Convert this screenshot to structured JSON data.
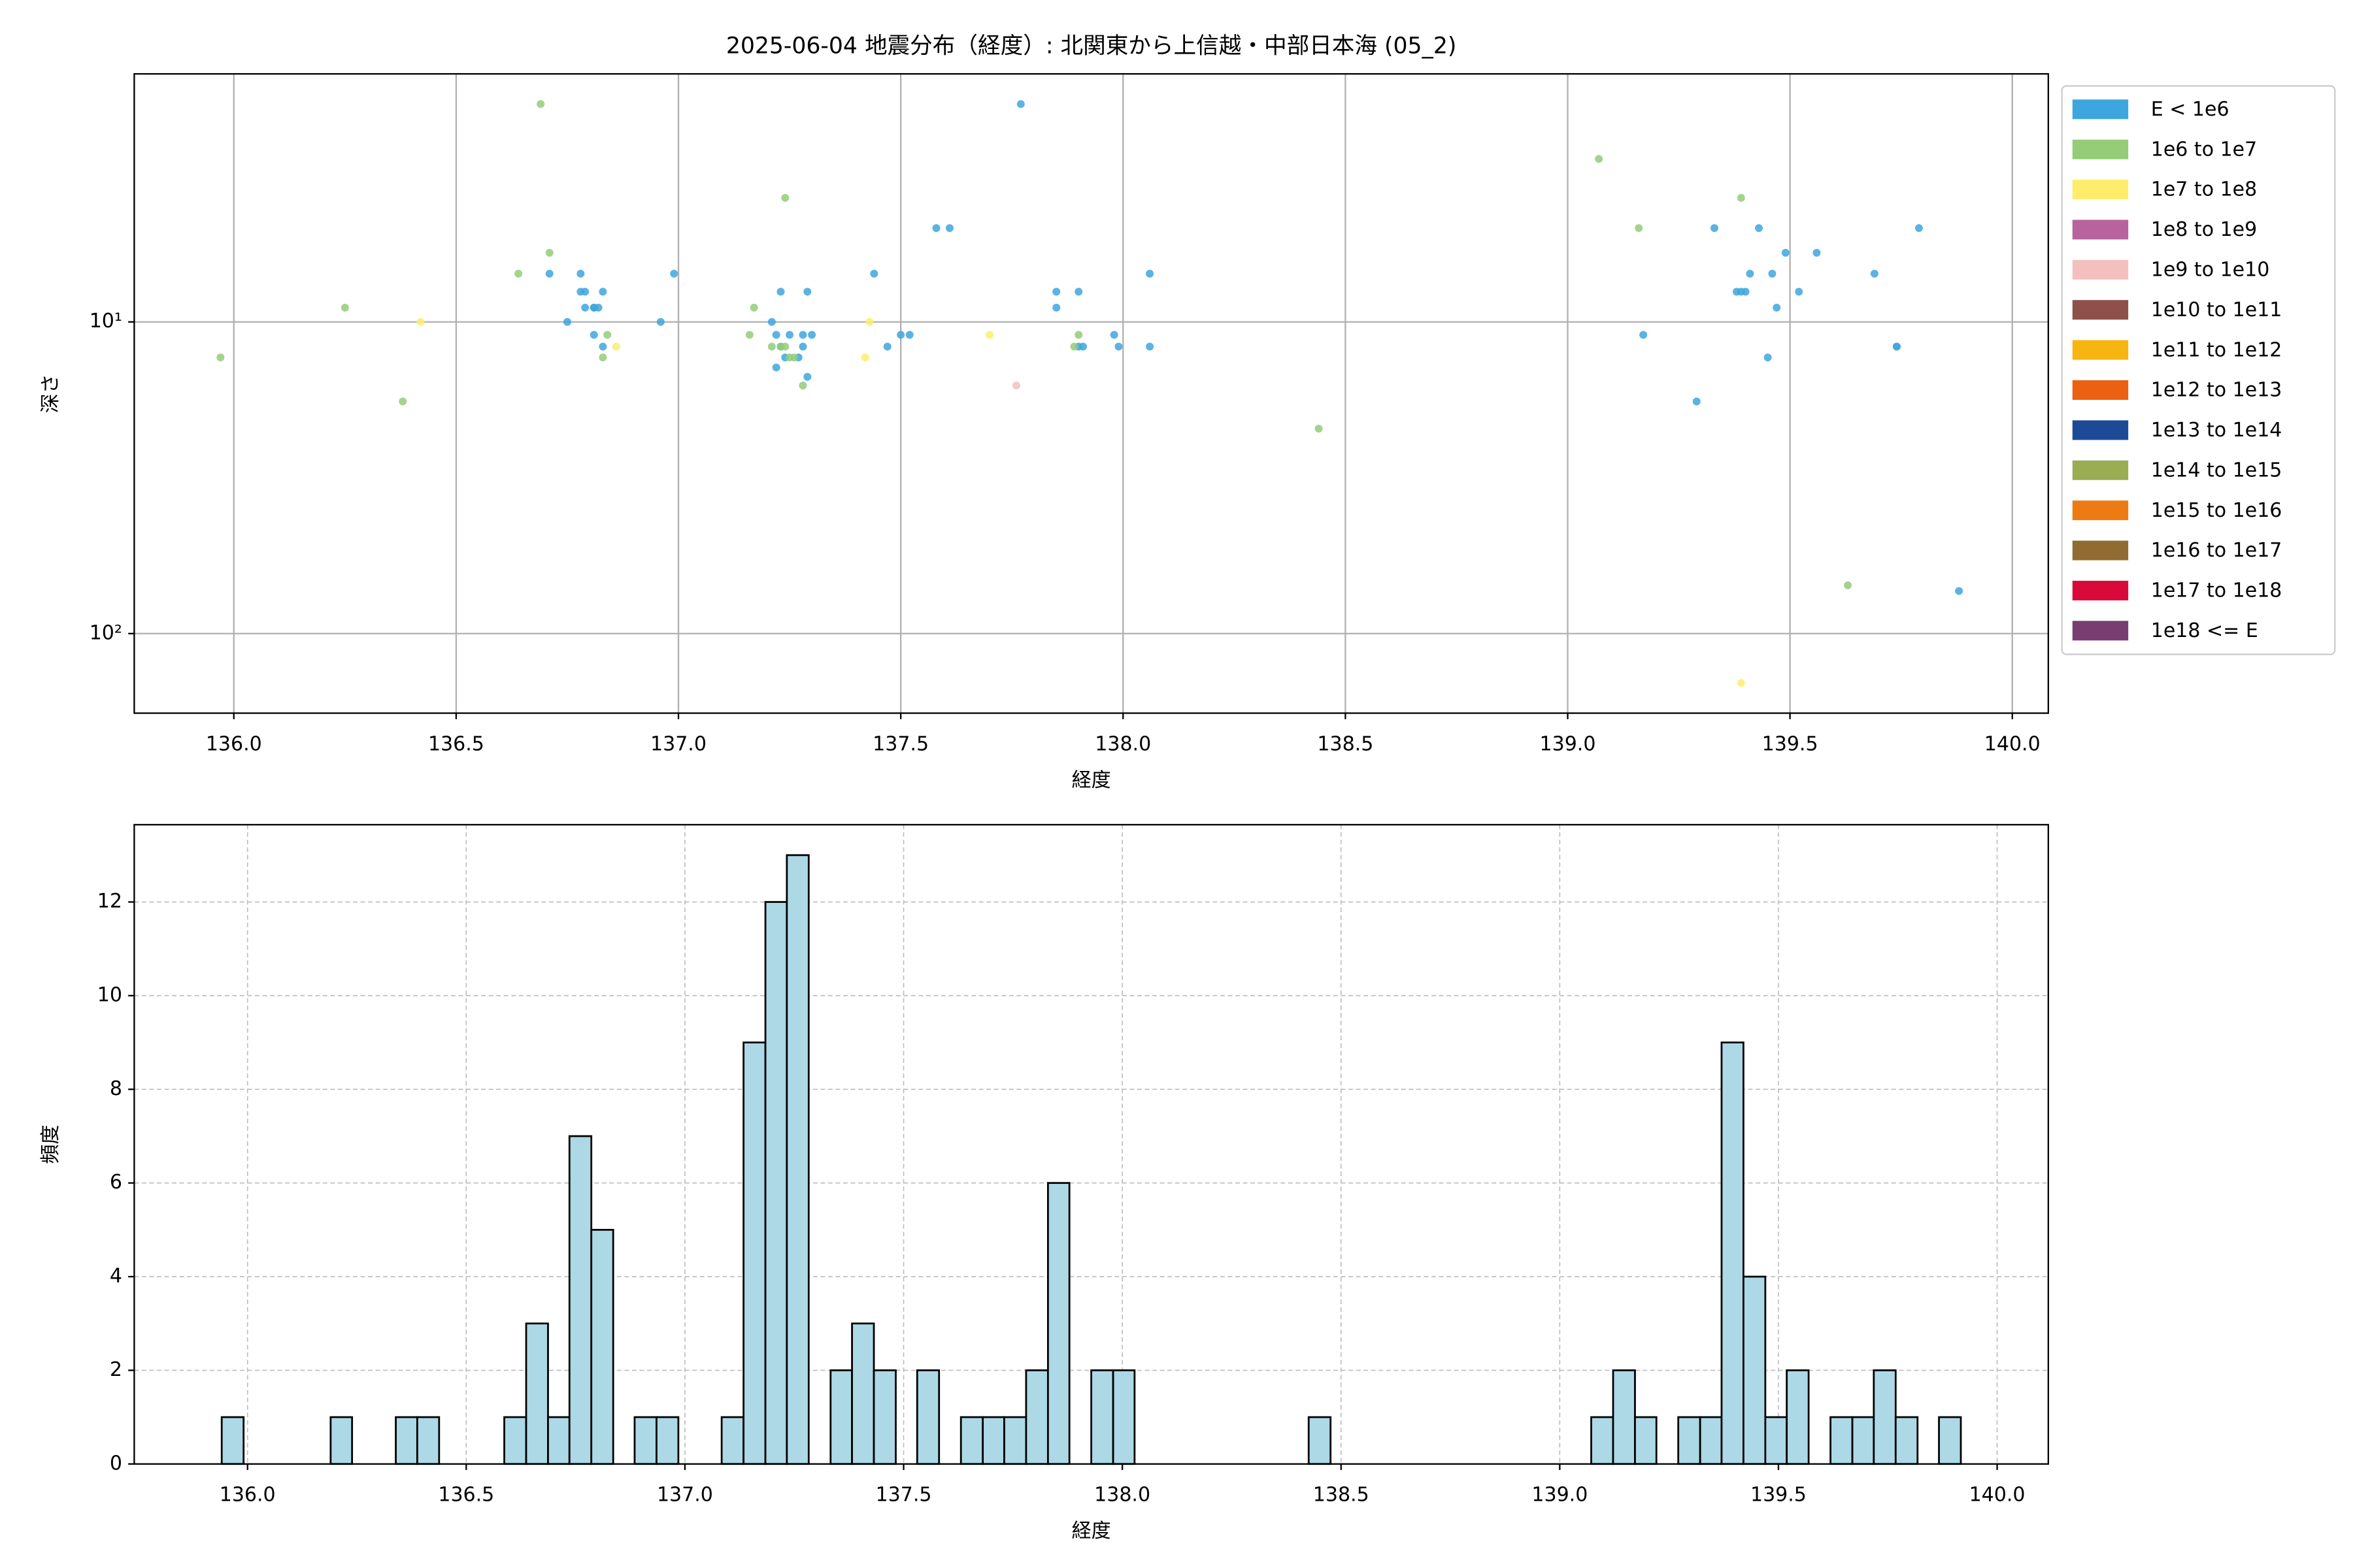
{
  "chart_data": [
    {
      "type": "scatter",
      "title": "2025-06-04 地震分布（経度）: 北関東から上信越・中部日本海 (05_2)",
      "x_label": "経度",
      "y_label": "深さ",
      "log_y": true,
      "grid": true,
      "grid_style": "solid",
      "legend": "outside-right",
      "xlim": [
        135.776,
        140.081
      ],
      "ylim": [
        180,
        1.6
      ],
      "xticks": [
        {
          "value": 136,
          "label": "136.0"
        },
        {
          "value": 136.5,
          "label": "136.5"
        },
        {
          "value": 137,
          "label": "137.0"
        },
        {
          "value": 137.5,
          "label": "137.5"
        },
        {
          "value": 138,
          "label": "138.0"
        },
        {
          "value": 138.5,
          "label": "138.5"
        },
        {
          "value": 139,
          "label": "139.0"
        },
        {
          "value": 139.5,
          "label": "139.5"
        },
        {
          "value": 140,
          "label": "140.0"
        }
      ],
      "yticks": [
        {
          "value": 10,
          "label": "10¹"
        },
        {
          "value": 100,
          "label": "10²"
        }
      ],
      "series": [
        {
          "name": "E < 1e6",
          "color": "#3ea6de",
          "x": [
            136.71,
            136.75,
            136.78,
            136.78,
            136.79,
            136.79,
            136.81,
            136.81,
            136.82,
            136.83,
            136.83,
            136.81,
            136.96,
            136.99,
            137.21,
            137.22,
            137.23,
            137.22,
            137.23,
            137.24,
            137.25,
            137.27,
            137.28,
            137.28,
            137.29,
            137.3,
            137.29,
            137.44,
            137.47,
            137.5,
            137.52,
            137.58,
            137.61,
            137.77,
            137.85,
            137.85,
            137.9,
            137.9,
            137.91,
            137.98,
            137.99,
            138.06,
            138.06,
            139.17,
            139.29,
            139.33,
            139.38,
            139.39,
            139.4,
            139.41,
            139.43,
            139.45,
            139.46,
            139.47,
            139.49,
            139.52,
            139.56,
            139.69,
            139.74,
            139.74,
            139.79,
            139.88
          ],
          "values": [
            7,
            10,
            7,
            8,
            8,
            9,
            9,
            9,
            9,
            8,
            12,
            11,
            10,
            7,
            10,
            11,
            12,
            14,
            8,
            13,
            11,
            13,
            12,
            11,
            8,
            11,
            15,
            7,
            12,
            11,
            11,
            5,
            5,
            2,
            8,
            9,
            8,
            12,
            12,
            11,
            12,
            7,
            12,
            11,
            18,
            5,
            8,
            8,
            8,
            7,
            5,
            13,
            7,
            9,
            6,
            8,
            6,
            7,
            12,
            12,
            5,
            73
          ]
        },
        {
          "name": "1e6 to 1e7",
          "color": "#94cc78",
          "x": [
            135.97,
            136.25,
            136.38,
            136.64,
            136.69,
            136.71,
            136.83,
            136.84,
            137.16,
            137.17,
            137.21,
            137.23,
            137.24,
            137.24,
            137.25,
            137.26,
            137.28,
            137.89,
            137.9,
            138.44,
            139.07,
            139.16,
            139.39,
            139.63
          ],
          "values": [
            13,
            9,
            18,
            7,
            2,
            6,
            13,
            11,
            11,
            9,
            12,
            12,
            4,
            12,
            13,
            13,
            16,
            12,
            11,
            22,
            3,
            5,
            4,
            70
          ]
        },
        {
          "name": "1e7 to 1e8",
          "color": "#fded6a",
          "x": [
            136.42,
            136.86,
            137.42,
            137.43,
            137.7,
            139.39
          ],
          "values": [
            10,
            12,
            13,
            10,
            11,
            144
          ]
        },
        {
          "name": "1e8 to 1e9",
          "color": "#b8629e",
          "x": [],
          "values": []
        },
        {
          "name": "1e9 to 1e10",
          "color": "#f4c0bd",
          "x": [
            137.76
          ],
          "values": [
            16
          ]
        },
        {
          "name": "1e10 to 1e11",
          "color": "#8e504b",
          "x": [],
          "values": []
        },
        {
          "name": "1e11 to 1e12",
          "color": "#f6b511",
          "x": [],
          "values": []
        },
        {
          "name": "1e12 to 1e13",
          "color": "#ec6012",
          "x": [],
          "values": []
        },
        {
          "name": "1e13 to 1e14",
          "color": "#1c4a96",
          "x": [],
          "values": []
        },
        {
          "name": "1e14 to 1e15",
          "color": "#9aad52",
          "x": [],
          "values": []
        },
        {
          "name": "1e15 to 1e16",
          "color": "#ee7a14",
          "x": [],
          "values": []
        },
        {
          "name": "1e16 to 1e17",
          "color": "#916b31",
          "x": [],
          "values": []
        },
        {
          "name": "1e17 to 1e18",
          "color": "#d90a3a",
          "x": [],
          "values": []
        },
        {
          "name": "1e18 <= E",
          "color": "#793d71",
          "x": [],
          "values": []
        }
      ]
    },
    {
      "type": "histogram",
      "x_label": "経度",
      "y_label": "頻度",
      "color": "#add8e6",
      "edgecolor": "#000000",
      "grid": true,
      "grid_style": "dashed",
      "xlim": [
        135.741,
        140.117
      ],
      "ylim": [
        0,
        13.65
      ],
      "xticks": [
        {
          "value": 136,
          "label": "136.0"
        },
        {
          "value": 136.5,
          "label": "136.5"
        },
        {
          "value": 137,
          "label": "137.0"
        },
        {
          "value": 137.5,
          "label": "137.5"
        },
        {
          "value": 138,
          "label": "138.0"
        },
        {
          "value": 138.5,
          "label": "138.5"
        },
        {
          "value": 139,
          "label": "139.0"
        },
        {
          "value": 139.5,
          "label": "139.5"
        },
        {
          "value": 140,
          "label": "140.0"
        }
      ],
      "yticks": [
        0,
        2,
        4,
        6,
        8,
        10,
        12
      ],
      "bins": [
        135.941,
        135.991,
        136.04,
        136.09,
        136.14,
        136.19,
        136.239,
        136.289,
        136.339,
        136.388,
        136.438,
        136.488,
        136.537,
        136.587,
        136.637,
        136.687,
        136.736,
        136.786,
        136.836,
        136.885,
        136.935,
        136.985,
        137.034,
        137.084,
        137.134,
        137.184,
        137.233,
        137.283,
        137.333,
        137.382,
        137.432,
        137.482,
        137.531,
        137.581,
        137.631,
        137.681,
        137.73,
        137.78,
        137.83,
        137.879,
        137.929,
        137.979,
        138.028,
        138.078,
        138.128,
        138.178,
        138.227,
        138.277,
        138.327,
        138.376,
        138.426,
        138.476,
        138.525,
        138.575,
        138.625,
        138.675,
        138.724,
        138.774,
        138.824,
        138.873,
        138.923,
        138.973,
        139.022,
        139.072,
        139.122,
        139.172,
        139.221,
        139.271,
        139.321,
        139.37,
        139.42,
        139.47,
        139.519,
        139.569,
        139.619,
        139.669,
        139.718,
        139.768,
        139.818,
        139.867,
        139.917
      ],
      "values": [
        1,
        0,
        0,
        0,
        0,
        1,
        0,
        0,
        1,
        1,
        0,
        0,
        0,
        1,
        3,
        1,
        7,
        5,
        0,
        1,
        1,
        0,
        0,
        1,
        9,
        12,
        13,
        0,
        2,
        3,
        2,
        0,
        2,
        0,
        1,
        1,
        1,
        2,
        6,
        0,
        2,
        2,
        0,
        0,
        0,
        0,
        0,
        0,
        0,
        0,
        1,
        0,
        0,
        0,
        0,
        0,
        0,
        0,
        0,
        0,
        0,
        0,
        0,
        1,
        2,
        1,
        0,
        1,
        1,
        9,
        4,
        1,
        2,
        0,
        1,
        1,
        2,
        1,
        0,
        1
      ]
    }
  ]
}
